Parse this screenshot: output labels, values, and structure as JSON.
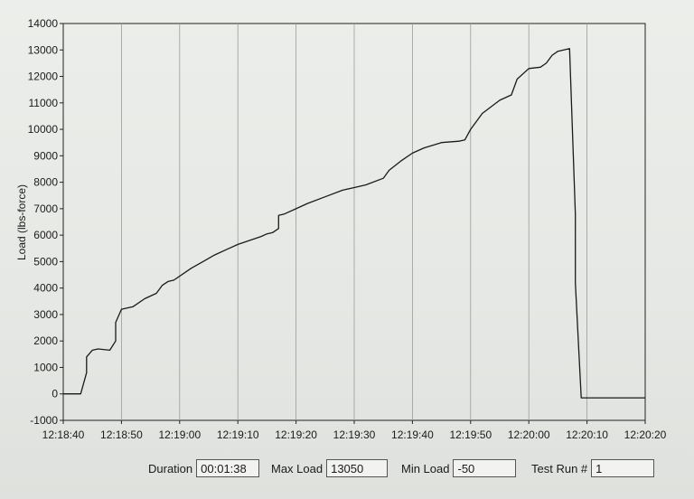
{
  "chart_data": {
    "type": "line",
    "ylabel": "Load (lbs-force)",
    "xlabel": "",
    "ylim": [
      -1000,
      14000
    ],
    "xlim": [
      "12:18:40",
      "12:20:20"
    ],
    "y_ticks": [
      "14000",
      "13000",
      "12000",
      "11000",
      "10000",
      "9000",
      "8000",
      "7000",
      "6000",
      "5000",
      "4000",
      "3000",
      "2000",
      "1000",
      "0",
      "-1000"
    ],
    "x_ticks": [
      "12:18:40",
      "12:18:50",
      "12:19:00",
      "12:19:10",
      "12:19:20",
      "12:19:30",
      "12:19:40",
      "12:19:50",
      "12:20:00",
      "12:20:10",
      "12:20:20"
    ],
    "grid": "vertical",
    "series": [
      {
        "color": "#1a1a1a",
        "x": [
          "12:18:40",
          "12:18:43",
          "12:18:44",
          "12:18:44",
          "12:18:45",
          "12:18:46",
          "12:18:48",
          "12:18:49",
          "12:18:49",
          "12:18:50",
          "12:18:52",
          "12:18:54",
          "12:18:56",
          "12:18:57",
          "12:18:58",
          "12:18:59",
          "12:19:02",
          "12:19:04",
          "12:19:06",
          "12:19:08",
          "12:19:10",
          "12:19:12",
          "12:19:14",
          "12:19:15",
          "12:19:16",
          "12:19:17",
          "12:19:17",
          "12:19:18",
          "12:19:20",
          "12:19:22",
          "12:19:25",
          "12:19:28",
          "12:19:30",
          "12:19:32",
          "12:19:35",
          "12:19:36",
          "12:19:38",
          "12:19:40",
          "12:19:42",
          "12:19:45",
          "12:19:48",
          "12:19:49",
          "12:19:50",
          "12:19:52",
          "12:19:55",
          "12:19:57",
          "12:19:58",
          "12:20:00",
          "12:20:02",
          "12:20:03",
          "12:20:04",
          "12:20:05",
          "12:20:07",
          "12:20:07",
          "12:20:08",
          "12:20:08",
          "12:20:09",
          "12:20:20"
        ],
        "y": [
          0,
          0,
          800,
          1400,
          1650,
          1700,
          1650,
          2000,
          2700,
          3200,
          3300,
          3600,
          3800,
          4100,
          4250,
          4300,
          4750,
          5000,
          5250,
          5450,
          5650,
          5800,
          5950,
          6050,
          6100,
          6250,
          6750,
          6800,
          7000,
          7200,
          7450,
          7700,
          7800,
          7900,
          8150,
          8450,
          8800,
          9100,
          9300,
          9500,
          9550,
          9600,
          10000,
          10600,
          11100,
          11300,
          11900,
          12300,
          12350,
          12500,
          12800,
          12950,
          13050,
          13050,
          6800,
          4200,
          -150,
          -150
        ]
      }
    ]
  },
  "footer": {
    "duration_label": "Duration",
    "duration_value": "00:01:38",
    "max_load_label": "Max Load",
    "max_load_value": "13050",
    "min_load_label": "Min Load",
    "min_load_value": "-50",
    "test_run_label": "Test Run #",
    "test_run_value": "1"
  }
}
